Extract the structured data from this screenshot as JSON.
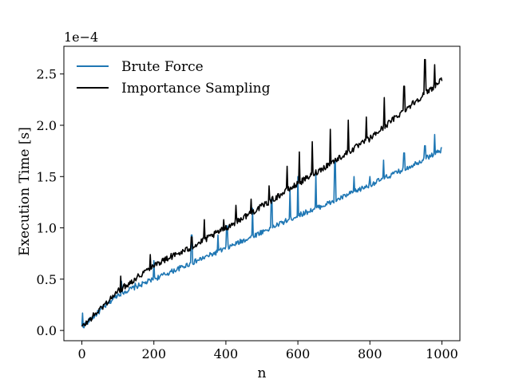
{
  "chart_data": {
    "type": "line",
    "title": "",
    "xlabel": "n",
    "ylabel": "Execution Time [s]",
    "y_offset_label": "1e−4",
    "xlim": [
      -50,
      1050
    ],
    "ylim": [
      -0.1,
      2.77
    ],
    "xticks": [
      0,
      200,
      400,
      600,
      800,
      1000
    ],
    "yticks": [
      0.0,
      0.5,
      1.0,
      1.5,
      2.0,
      2.5
    ],
    "ytick_labels": [
      "0.0",
      "0.5",
      "1.0",
      "1.5",
      "2.0",
      "2.5"
    ],
    "grid": false,
    "legend_position": "top-left",
    "series": [
      {
        "name": "Brute Force",
        "color": "#1f77b4",
        "base": [
          [
            0,
            0.03
          ],
          [
            100,
            0.35
          ],
          [
            200,
            0.5
          ],
          [
            300,
            0.65
          ],
          [
            400,
            0.8
          ],
          [
            500,
            0.96
          ],
          [
            600,
            1.12
          ],
          [
            700,
            1.26
          ],
          [
            800,
            1.42
          ],
          [
            900,
            1.58
          ],
          [
            1000,
            1.76
          ]
        ],
        "noise": 0.025,
        "spikes": [
          [
            2,
            0.17
          ],
          [
            110,
            0.48
          ],
          [
            148,
            0.46
          ],
          [
            200,
            0.68
          ],
          [
            305,
            0.93
          ],
          [
            378,
            0.93
          ],
          [
            403,
            1.02
          ],
          [
            474,
            1.19
          ],
          [
            527,
            1.28
          ],
          [
            578,
            1.37
          ],
          [
            600,
            1.5
          ],
          [
            650,
            1.53
          ],
          [
            703,
            1.65
          ],
          [
            756,
            1.5
          ],
          [
            800,
            1.5
          ],
          [
            838,
            1.66
          ],
          [
            895,
            1.73
          ],
          [
            953,
            1.8
          ],
          [
            980,
            1.91
          ]
        ]
      },
      {
        "name": "Importance Sampling",
        "color": "#000000",
        "base": [
          [
            0,
            0.03
          ],
          [
            100,
            0.38
          ],
          [
            200,
            0.64
          ],
          [
            300,
            0.8
          ],
          [
            400,
            1.0
          ],
          [
            500,
            1.21
          ],
          [
            600,
            1.43
          ],
          [
            700,
            1.65
          ],
          [
            800,
            1.87
          ],
          [
            900,
            2.16
          ],
          [
            1000,
            2.44
          ]
        ],
        "noise": 0.03,
        "spikes": [
          [
            108,
            0.53
          ],
          [
            190,
            0.74
          ],
          [
            248,
            0.75
          ],
          [
            305,
            0.91
          ],
          [
            340,
            1.08
          ],
          [
            394,
            1.08
          ],
          [
            428,
            1.22
          ],
          [
            470,
            1.28
          ],
          [
            520,
            1.41
          ],
          [
            570,
            1.6
          ],
          [
            604,
            1.74
          ],
          [
            640,
            1.84
          ],
          [
            690,
            1.96
          ],
          [
            740,
            2.05
          ],
          [
            790,
            2.08
          ],
          [
            840,
            2.27
          ],
          [
            895,
            2.38
          ],
          [
            953,
            2.64
          ],
          [
            980,
            2.59
          ],
          [
            995,
            2.45
          ]
        ]
      }
    ]
  }
}
